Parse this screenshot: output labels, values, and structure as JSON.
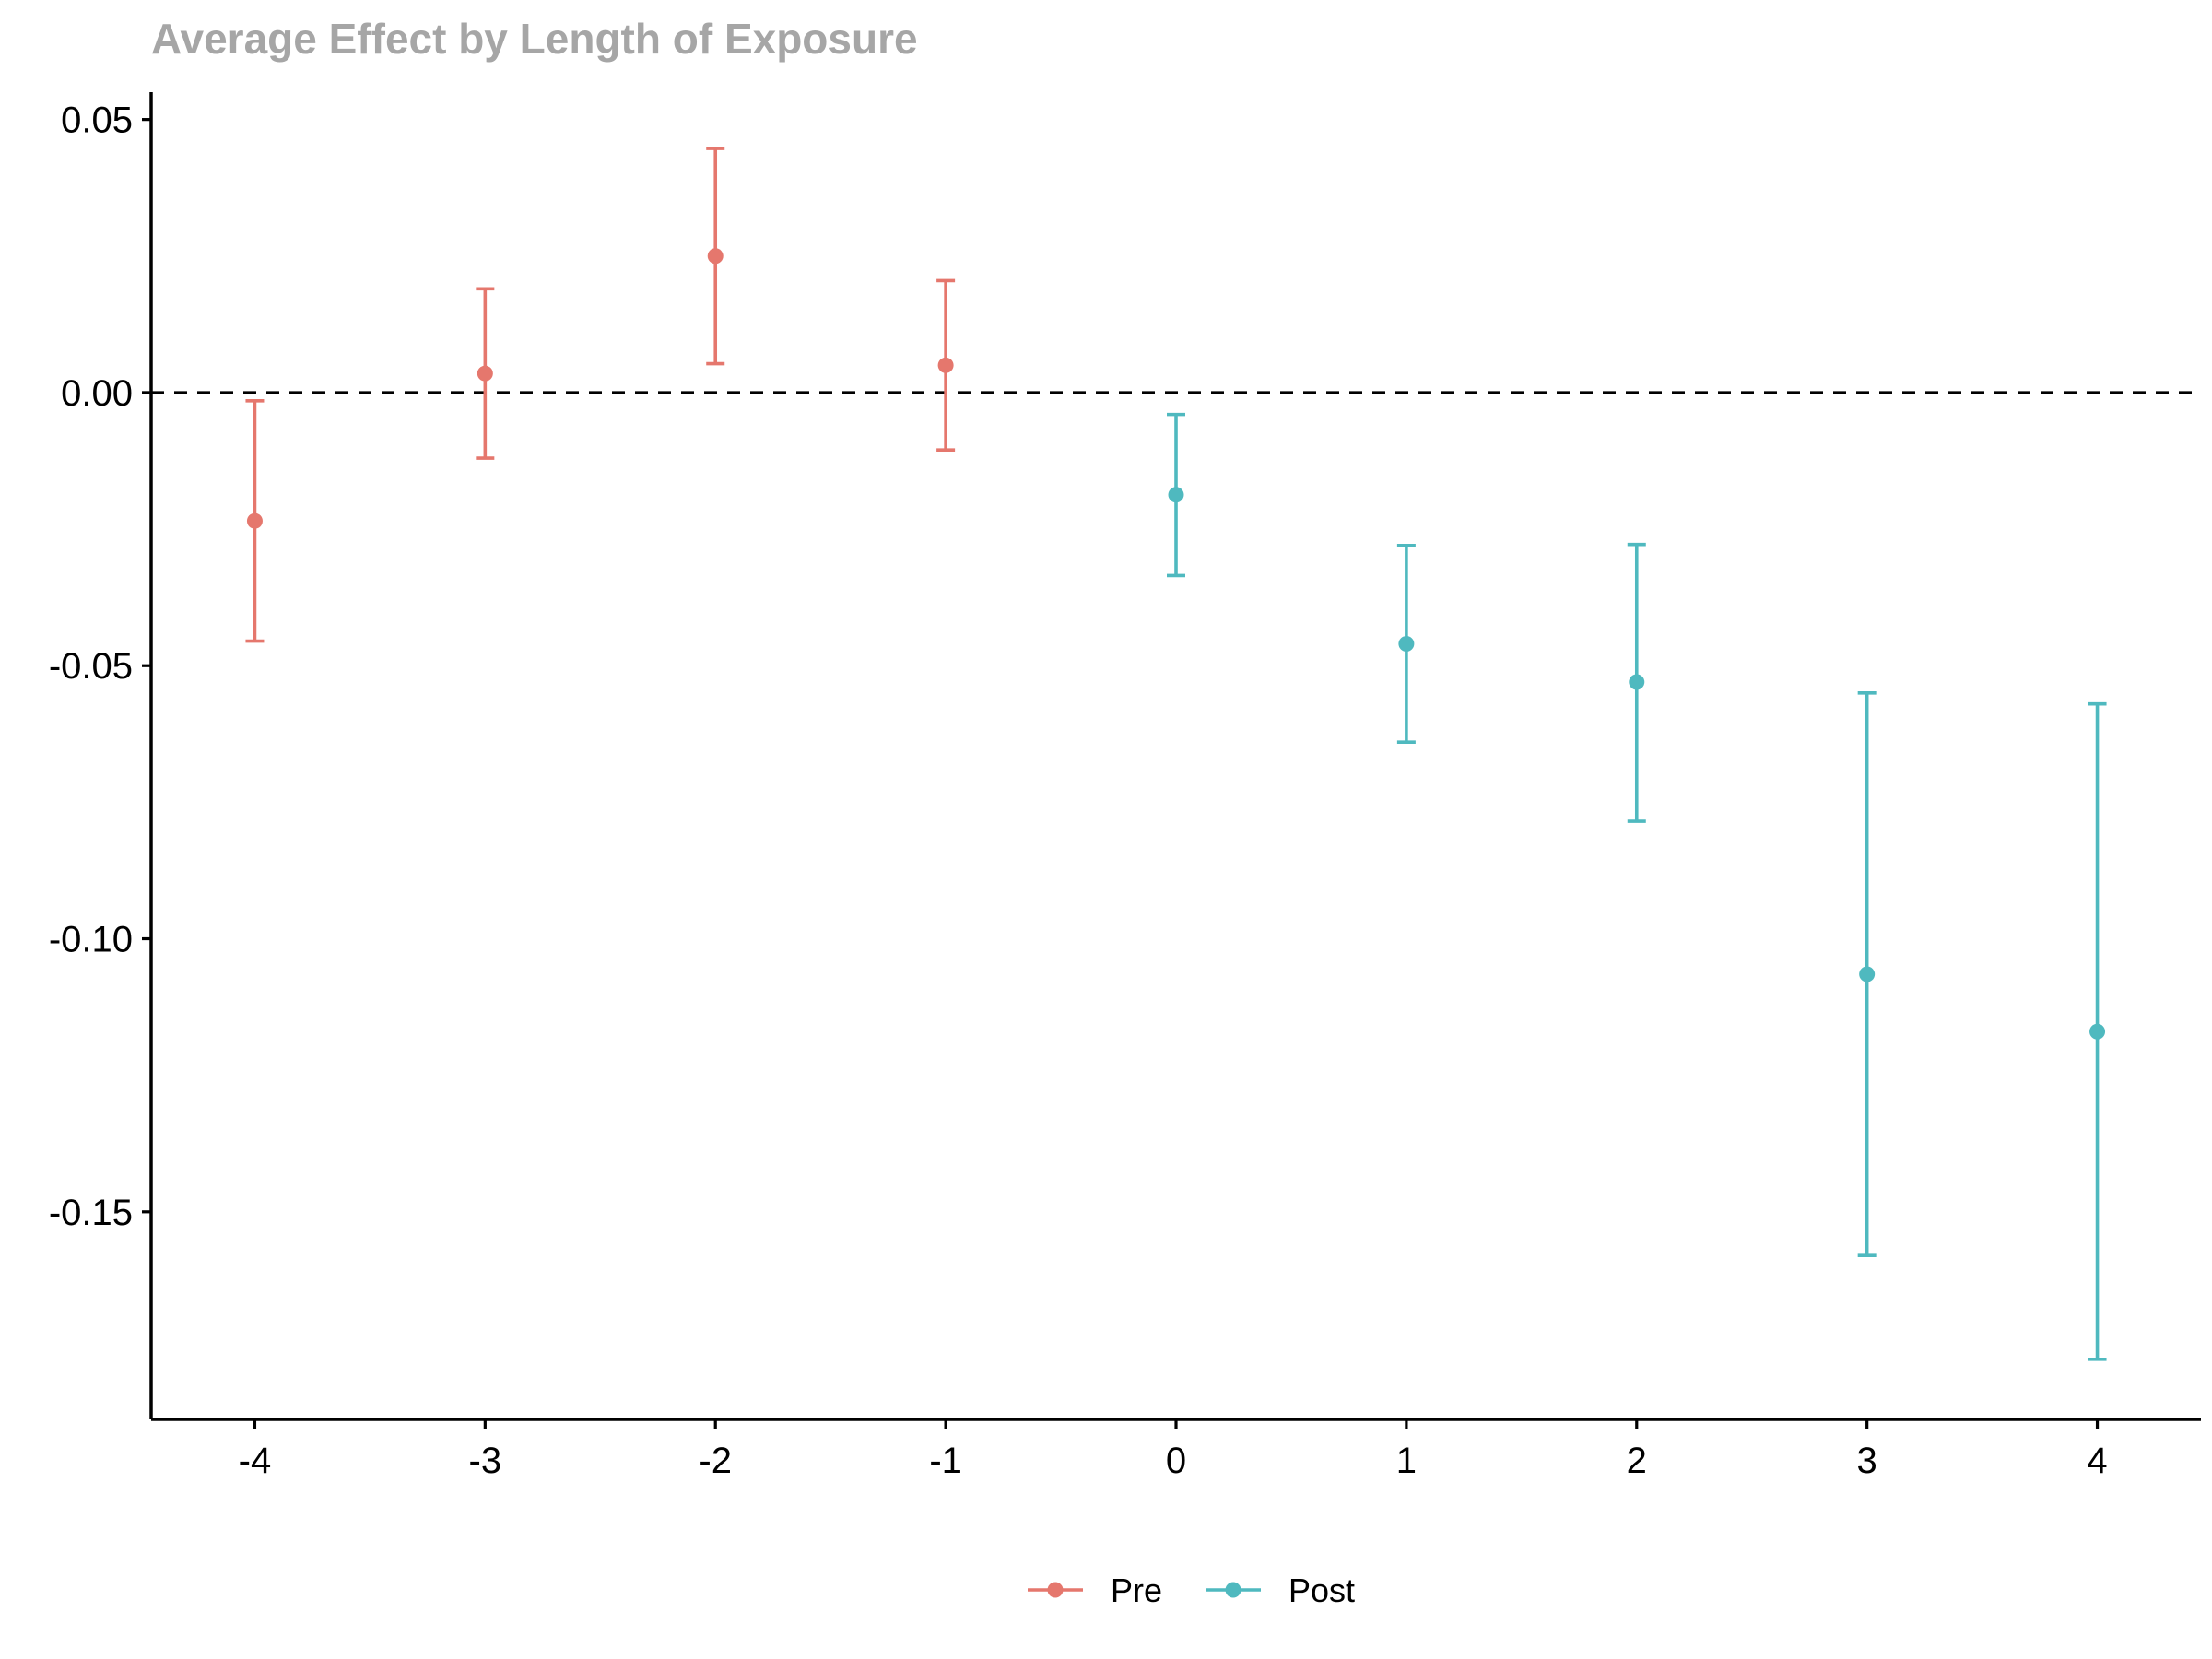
{
  "chart_data": {
    "type": "scatter",
    "title": "Average Effect by Length of Exposure",
    "xlabel": "",
    "ylabel": "",
    "x_ticks": [
      "-4",
      "-3",
      "-2",
      "-1",
      "0",
      "1",
      "2",
      "3",
      "4"
    ],
    "y_ticks": [
      "0.05",
      "0.00",
      "-0.05",
      "-0.10",
      "-0.15"
    ],
    "xlim": [
      -4.45,
      4.45
    ],
    "ylim": [
      -0.188,
      0.055
    ],
    "reference_line": {
      "y": 0.0,
      "style": "dashed"
    },
    "grid": false,
    "legend_position": "bottom",
    "series": [
      {
        "name": "Pre",
        "color": "#e5776d",
        "points": [
          {
            "x": -4,
            "y": -0.0235,
            "lower": -0.0455,
            "upper": -0.0015
          },
          {
            "x": -3,
            "y": 0.0035,
            "lower": -0.012,
            "upper": 0.019
          },
          {
            "x": -2,
            "y": 0.025,
            "lower": 0.0053,
            "upper": 0.0447
          },
          {
            "x": -1,
            "y": 0.005,
            "lower": -0.0105,
            "upper": 0.0205
          }
        ]
      },
      {
        "name": "Post",
        "color": "#4fb9bf",
        "points": [
          {
            "x": 0,
            "y": -0.0187,
            "lower": -0.0335,
            "upper": -0.004
          },
          {
            "x": 1,
            "y": -0.046,
            "lower": -0.064,
            "upper": -0.028
          },
          {
            "x": 2,
            "y": -0.053,
            "lower": -0.0785,
            "upper": -0.0278
          },
          {
            "x": 3,
            "y": -0.1065,
            "lower": -0.158,
            "upper": -0.055
          },
          {
            "x": 4,
            "y": -0.117,
            "lower": -0.177,
            "upper": -0.057
          }
        ]
      }
    ]
  }
}
